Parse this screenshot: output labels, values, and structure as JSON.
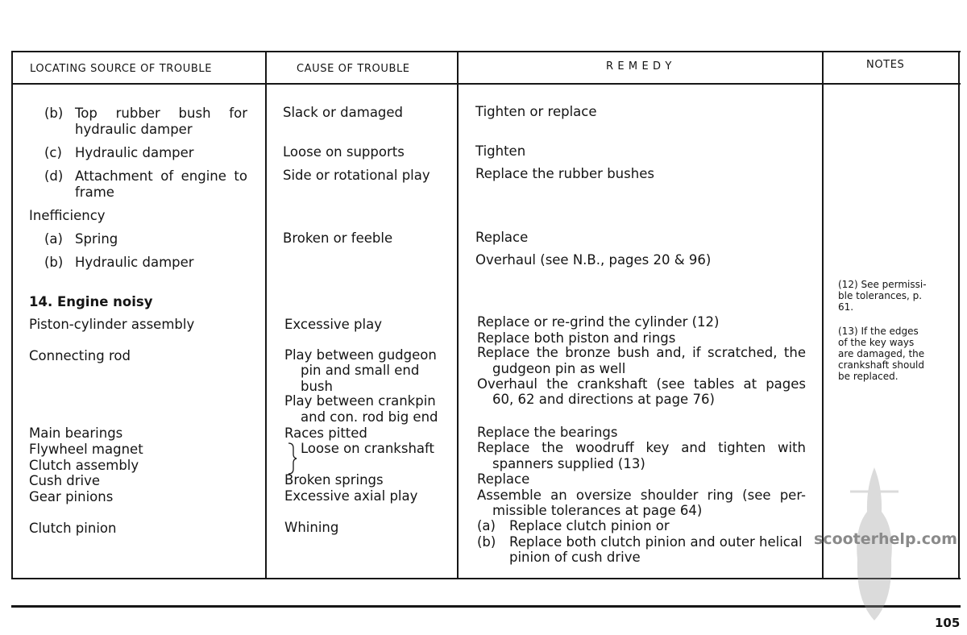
{
  "headers": {
    "locating": "LOCATING SOURCE OF TROUBLE",
    "cause": "CAUSE OF TROUBLE",
    "remedy": "R E M E D Y",
    "notes": "NOTES"
  },
  "col1": {
    "b1_label": "(b)",
    "b1_text1": "Top rubber bush for",
    "b1_text2": "hydraulic damper",
    "c_label": "(c)",
    "c_text": "Hydraulic damper",
    "d_label": "(d)",
    "d_text1": "Attachment of engine to",
    "d_text2": "frame",
    "inefficiency": "Inefficiency",
    "a2_label": "(a)",
    "a2_text": "Spring",
    "b2_label": "(b)",
    "b2_text": "Hydraulic damper",
    "section": "14.  Engine noisy",
    "piston": "Piston-cylinder assembly",
    "conrod": "Connecting rod",
    "main": "Main bearings",
    "flywheel": "Flywheel magnet",
    "clutch_assembly": "Clutch assembly",
    "cush": "Cush drive",
    "gear": "Gear pinions",
    "clutch_pinion": "Clutch pinion"
  },
  "col2": [
    "Slack or damaged",
    "Loose on supports",
    "Side or rotational play",
    "Broken or feeble",
    "Excessive play",
    "Play between gudgeon",
    "pin and small end",
    "bush",
    "Play between crankpin",
    "and con. rod big end",
    "Races pitted",
    "Loose on crankshaft",
    "Broken springs",
    "Excessive axial play",
    "Whining"
  ],
  "col3": [
    "Tighten or replace",
    "Tighten",
    "Replace the rubber bushes",
    "Replace",
    "Overhaul (see N.B., pages 20 & 96)",
    "Replace or re-grind the cylinder (12)",
    "Replace both piston and rings",
    "Replace the bronze bush and, if scratched, the",
    "gudgeon pin as well",
    "Overhaul the crankshaft (see tables at pages",
    "60, 62 and directions at page 76)",
    "Replace the bearings",
    "Replace the woodruff key and tighten with",
    "spanners supplied (13)",
    "Replace",
    "Assemble an oversize shoulder ring (see per-",
    "missible tolerances at page 64)",
    "(a)",
    "Replace clutch pinion or",
    "(b)",
    "Replace both clutch pinion and outer helical",
    "pinion of cush drive"
  ],
  "notes": [
    "(12) See permissi-",
    "ble tolerances, p.",
    "61.",
    "(13) If the edges",
    "of the key ways",
    "are damaged, the",
    "crankshaft should",
    "be replaced."
  ],
  "watermark": "scooterhelp.com",
  "page_number": "105"
}
